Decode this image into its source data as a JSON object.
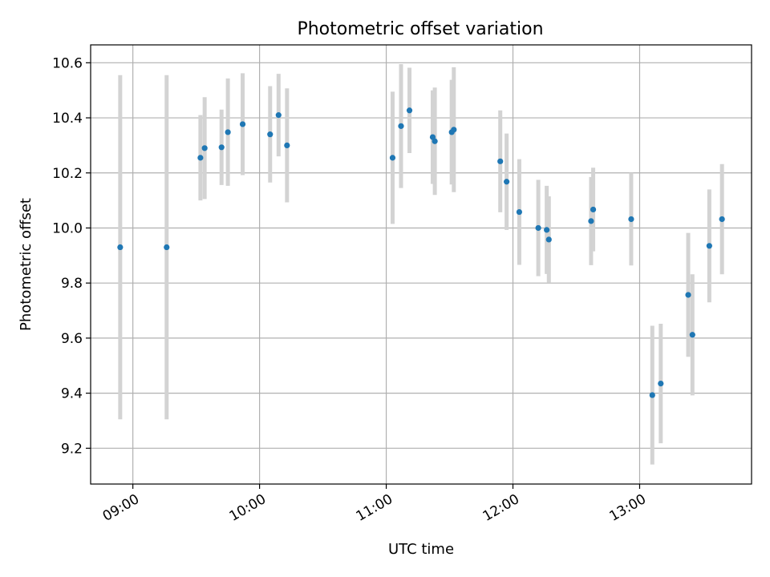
{
  "chart_data": {
    "type": "scatter",
    "title": "Photometric offset variation",
    "xlabel": "UTC time",
    "ylabel": "Photometric offset",
    "grid": true,
    "x_ticks": [
      "09:00",
      "10:00",
      "11:00",
      "12:00",
      "13:00"
    ],
    "x_tick_values": [
      "09:00",
      "10:00",
      "11:00",
      "12:00",
      "13:00"
    ],
    "xlim": [
      "08:40",
      "13:53"
    ],
    "y_ticks": [
      "9.2",
      "9.4",
      "9.6",
      "9.8",
      "10.0",
      "10.2",
      "10.4",
      "10.6"
    ],
    "y_tick_values": [
      9.2,
      9.4,
      9.6,
      9.8,
      10.0,
      10.2,
      10.4,
      10.6
    ],
    "ylim": [
      9.07,
      10.665
    ],
    "point_color": "#1f77b4",
    "errorbar_color": "#d3d3d3",
    "points": [
      {
        "time": "08:54",
        "y": 9.93,
        "err": 0.625
      },
      {
        "time": "09:16",
        "y": 9.93,
        "err": 0.625
      },
      {
        "time": "09:32",
        "y": 10.255,
        "err": 0.155
      },
      {
        "time": "09:34",
        "y": 10.29,
        "err": 0.185
      },
      {
        "time": "09:42",
        "y": 10.293,
        "err": 0.137
      },
      {
        "time": "09:45",
        "y": 10.348,
        "err": 0.195
      },
      {
        "time": "09:52",
        "y": 10.377,
        "err": 0.185
      },
      {
        "time": "10:05",
        "y": 10.34,
        "err": 0.175
      },
      {
        "time": "10:09",
        "y": 10.41,
        "err": 0.15
      },
      {
        "time": "10:13",
        "y": 10.3,
        "err": 0.207
      },
      {
        "time": "11:03",
        "y": 10.255,
        "err": 0.24
      },
      {
        "time": "11:07",
        "y": 10.37,
        "err": 0.225
      },
      {
        "time": "11:11",
        "y": 10.427,
        "err": 0.155
      },
      {
        "time": "11:22",
        "y": 10.33,
        "err": 0.17
      },
      {
        "time": "11:23",
        "y": 10.315,
        "err": 0.195
      },
      {
        "time": "11:31",
        "y": 10.348,
        "err": 0.19
      },
      {
        "time": "11:32",
        "y": 10.357,
        "err": 0.227
      },
      {
        "time": "11:54",
        "y": 10.242,
        "err": 0.185
      },
      {
        "time": "11:57",
        "y": 10.168,
        "err": 0.175
      },
      {
        "time": "12:03",
        "y": 10.058,
        "err": 0.192
      },
      {
        "time": "12:12",
        "y": 10.0,
        "err": 0.175
      },
      {
        "time": "12:16",
        "y": 9.993,
        "err": 0.16
      },
      {
        "time": "12:17",
        "y": 9.958,
        "err": 0.157
      },
      {
        "time": "12:37",
        "y": 10.025,
        "err": 0.16
      },
      {
        "time": "12:38",
        "y": 10.067,
        "err": 0.152
      },
      {
        "time": "12:56",
        "y": 10.032,
        "err": 0.168
      },
      {
        "time": "13:06",
        "y": 9.393,
        "err": 0.252
      },
      {
        "time": "13:10",
        "y": 9.435,
        "err": 0.217
      },
      {
        "time": "13:23",
        "y": 9.757,
        "err": 0.225
      },
      {
        "time": "13:25",
        "y": 9.612,
        "err": 0.22
      },
      {
        "time": "13:33",
        "y": 9.935,
        "err": 0.205
      },
      {
        "time": "13:39",
        "y": 10.032,
        "err": 0.2
      }
    ]
  }
}
